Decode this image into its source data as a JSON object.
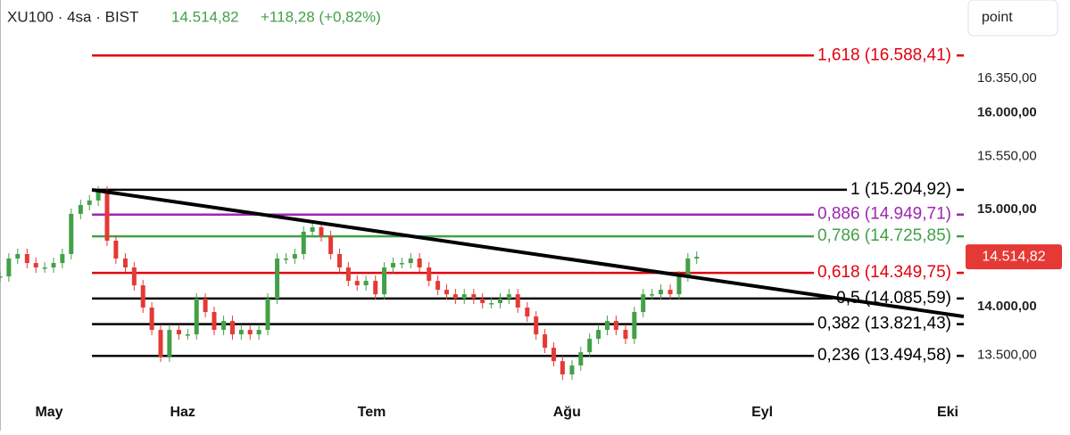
{
  "header": {
    "symbol": "XU100 · 4sa · BIST",
    "price": "14.514,82",
    "change": "+118,28 (+0,82%)",
    "unit_button": "point",
    "price_tag": "14.514,82"
  },
  "chart_data": {
    "type": "candlestick",
    "x": [
      2.0,
      3.4,
      4.8,
      6.3,
      7.7,
      9.1,
      10.5,
      11.9,
      13.3,
      14.8,
      16.2,
      17.6,
      19.0,
      20.4,
      21.9,
      23.3,
      24.7,
      26.1,
      27.5,
      28.9,
      30.4,
      31.8,
      33.2,
      34.6,
      36.0,
      37.5,
      38.9,
      40.3,
      41.7,
      43.1,
      44.5,
      46.0,
      47.4,
      48.8,
      50.2,
      51.6,
      53.0,
      54.5,
      55.9,
      57.3,
      58.7,
      60.1,
      61.6,
      63.0,
      64.4,
      65.8,
      67.2,
      68.6,
      70.1,
      71.5,
      72.9,
      74.3,
      75.7,
      77.2,
      78.6,
      80.0,
      81.4,
      82.8,
      84.2,
      85.7,
      87.1,
      88.5,
      89.9,
      91.3,
      92.8,
      94.2,
      95.6,
      97.0,
      98.4,
      99.8,
      101.3,
      102.7,
      104.1,
      105.5,
      106.9,
      108.4,
      109.8,
      111.2,
      112.6
    ],
    "values": [
      14313,
      14497,
      14543,
      14451,
      14405,
      14405,
      14451,
      14543,
      14957,
      15049,
      15095,
      15187,
      14681,
      14497,
      14405,
      14221,
      13992,
      13762,
      13487,
      13762,
      13716,
      13716,
      14084,
      13946,
      13762,
      13854,
      13716,
      13762,
      13716,
      13762,
      14084,
      14497,
      14497,
      14543,
      14773,
      14819,
      14727,
      14543,
      14405,
      14267,
      14221,
      14267,
      14129,
      14405,
      14451,
      14451,
      14497,
      14405,
      14267,
      14175,
      14129,
      14084,
      14129,
      14084,
      14038,
      14038,
      14084,
      14129,
      13992,
      13900,
      13716,
      13578,
      13440,
      13303,
      13395,
      13532,
      13670,
      13762,
      13854,
      13762,
      13670,
      13946,
      14129,
      14129,
      14175,
      14129,
      14313,
      14497,
      14514.82
    ],
    "up_color": "#43a047",
    "down_color": "#e53935",
    "xlim": [
      2,
      155
    ],
    "ylim": [
      13120,
      17160
    ],
    "xticks": [
      {
        "value": 0,
        "label": "May"
      },
      {
        "value": 31,
        "label": "Haz"
      },
      {
        "value": 61,
        "label": "Tem"
      },
      {
        "value": 92,
        "label": "Ağu"
      },
      {
        "value": 123,
        "label": "Eyl"
      },
      {
        "value": 153,
        "label": "Eki"
      }
    ],
    "yticks": [
      {
        "value": 16350,
        "label": "16.350,00"
      },
      {
        "value": 16000,
        "label": "16.000,00"
      },
      {
        "value": 15550,
        "label": "15.550,00"
      },
      {
        "value": 15000,
        "label": "15.000,00"
      },
      {
        "value": 14000,
        "label": "14.000,00"
      },
      {
        "value": 13500,
        "label": "13.500,00"
      }
    ],
    "fib_levels": [
      {
        "value": 16588.41,
        "label": "1,618 (16.588,41)",
        "color": "#e3000f"
      },
      {
        "value": 15204.92,
        "label": "1 (15.204,92)",
        "color": "#000000"
      },
      {
        "value": 14949.71,
        "label": "0,886 (14.949,71)",
        "color": "#9c27b0"
      },
      {
        "value": 14725.85,
        "label": "0,786 (14.725,85)",
        "color": "#43a047"
      },
      {
        "value": 14349.75,
        "label": "0,618 (14.349,75)",
        "color": "#e3000f"
      },
      {
        "value": 14085.59,
        "label": "0,5 (14.085,59)",
        "color": "#000000"
      },
      {
        "value": 13821.43,
        "label": "0,382 (13.821,43)",
        "color": "#000000"
      },
      {
        "value": 13494.58,
        "label": "0,236 (13.494,58)",
        "color": "#000000"
      }
    ],
    "fib_start_x": 16.6,
    "trendline": {
      "x": [
        16.6,
        155
      ],
      "values": [
        15204.92,
        13900
      ],
      "color": "#000000"
    }
  }
}
